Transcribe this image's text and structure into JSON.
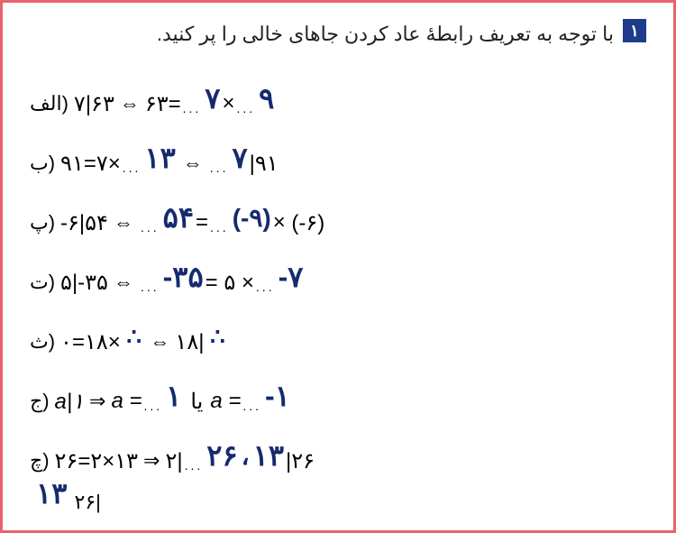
{
  "question_number": "۱",
  "question_text": "با توجه به تعریف رابطهٔ عاد کردن جاهای خالی را پر کنید.",
  "items": {
    "a": {
      "label": "الف)",
      "left": "۷|۶۳",
      "arrow": "⇔",
      "rhs_a": "۶۳=",
      "hw1": "۷",
      "mid": "×",
      "hw2": "۹"
    },
    "b": {
      "label": "ب)",
      "left": "۹۱=۷×",
      "hw1": "۱۳",
      "arrow": "⇔",
      "hw2": "۷",
      "right": "|۹۱"
    },
    "p": {
      "label": "پ)",
      "left": "-۶|۵۴",
      "arrow": "⇔",
      "hw1": "۵۴",
      "eq": "=",
      "hw2": "(-۹)",
      "mid": "×",
      "right": "(-۶)"
    },
    "t": {
      "label": "ت)",
      "left": "۵|-۳۵",
      "arrow": "⇔",
      "hw1": "-۳۵",
      "eq": "= ۵ ×",
      "hw2": "-۷"
    },
    "th": {
      "label": "ث)",
      "left": "۰=۱۸×",
      "arrow": "⇔",
      "right": "۱۸|"
    },
    "j": {
      "label": "ج)",
      "left": "a|۱",
      "arrow": "⇒",
      "mid1": "a =",
      "hw1": "۱",
      "or": "یا",
      "mid2": "a =",
      "hw2": "-۱"
    },
    "ch": {
      "label": "چ)",
      "left": "۲۶=۲×۱۳",
      "arrow": "⇒",
      "mid": "۲|",
      "hw1": "۲۶",
      "comma": "،",
      "hw2": "۱۳",
      "right_extra": "۲۶|",
      "hw3": "۱۳"
    }
  },
  "colors": {
    "border": "#e8636b",
    "badge_bg": "#1e3a8a",
    "handwriting": "#152a6e",
    "text": "#000000"
  }
}
